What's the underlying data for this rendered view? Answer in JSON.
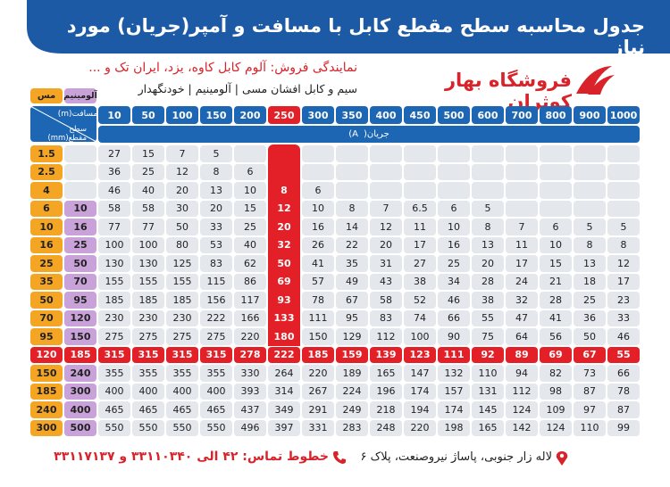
{
  "header": {
    "title": "جدول محاسبه سطح مقطع کابل با مسافت و آمپر(جریان) مورد نیاز"
  },
  "info": {
    "dealer": "نمایندگی فروش: آلوم کابل کاوه، یزد، ایران تک و ...",
    "products": "سیم و کابل افشان مسی | آلومینیم | خودنگهدار",
    "store_name": "فروشگاه بهار کوثران"
  },
  "table": {
    "copper_label": "مس",
    "aluminum_label": "آلومینیم",
    "distance_label": "مسافت(m)",
    "section_label": "سطح مقطع(mm)",
    "current_label": "جریان(A)",
    "distances": [
      10,
      50,
      100,
      150,
      200,
      250,
      300,
      350,
      400,
      450,
      500,
      600,
      700,
      800,
      900,
      1000
    ],
    "rows": [
      {
        "copper": 1.5,
        "aluminum": null,
        "values": [
          27,
          15,
          7,
          5,
          null,
          null,
          null,
          null,
          null,
          null,
          null,
          null,
          null,
          null,
          null,
          null
        ]
      },
      {
        "copper": 2.5,
        "aluminum": null,
        "values": [
          36,
          25,
          12,
          8,
          6,
          null,
          null,
          null,
          null,
          null,
          null,
          null,
          null,
          null,
          null,
          null
        ]
      },
      {
        "copper": 4,
        "aluminum": null,
        "values": [
          46,
          40,
          20,
          13,
          10,
          8,
          6,
          null,
          null,
          null,
          null,
          null,
          null,
          null,
          null,
          null
        ]
      },
      {
        "copper": 6,
        "aluminum": 10,
        "values": [
          58,
          58,
          30,
          20,
          15,
          12,
          10,
          8,
          7,
          6.5,
          6,
          5,
          null,
          null,
          null,
          null
        ]
      },
      {
        "copper": 10,
        "aluminum": 16,
        "values": [
          77,
          77,
          50,
          33,
          25,
          20,
          16,
          14,
          12,
          11,
          10,
          8,
          7,
          6,
          5,
          5
        ]
      },
      {
        "copper": 16,
        "aluminum": 25,
        "values": [
          100,
          100,
          80,
          53,
          40,
          32,
          26,
          22,
          20,
          17,
          16,
          13,
          11,
          10,
          8,
          8
        ]
      },
      {
        "copper": 25,
        "aluminum": 50,
        "values": [
          130,
          130,
          125,
          83,
          62,
          50,
          41,
          35,
          31,
          27,
          25,
          20,
          17,
          15,
          13,
          12
        ]
      },
      {
        "copper": 35,
        "aluminum": 70,
        "values": [
          155,
          155,
          155,
          115,
          86,
          69,
          57,
          49,
          43,
          38,
          34,
          28,
          24,
          21,
          18,
          17
        ]
      },
      {
        "copper": 50,
        "aluminum": 95,
        "values": [
          185,
          185,
          185,
          156,
          117,
          93,
          78,
          67,
          58,
          52,
          46,
          38,
          32,
          28,
          25,
          23
        ]
      },
      {
        "copper": 70,
        "aluminum": 120,
        "values": [
          230,
          230,
          230,
          222,
          166,
          133,
          111,
          95,
          83,
          74,
          66,
          55,
          47,
          41,
          36,
          33
        ]
      },
      {
        "copper": 95,
        "aluminum": 150,
        "values": [
          275,
          275,
          275,
          275,
          220,
          180,
          150,
          129,
          112,
          100,
          90,
          75,
          64,
          56,
          50,
          46
        ]
      },
      {
        "copper": 120,
        "aluminum": 185,
        "values": [
          315,
          315,
          315,
          315,
          278,
          222,
          185,
          159,
          139,
          123,
          111,
          92,
          89,
          69,
          67,
          55
        ]
      },
      {
        "copper": 150,
        "aluminum": 240,
        "values": [
          355,
          355,
          355,
          355,
          330,
          264,
          220,
          189,
          165,
          147,
          132,
          110,
          94,
          82,
          73,
          66
        ]
      },
      {
        "copper": 185,
        "aluminum": 300,
        "values": [
          400,
          400,
          400,
          400,
          393,
          314,
          267,
          224,
          196,
          174,
          157,
          131,
          112,
          98,
          87,
          78
        ]
      },
      {
        "copper": 240,
        "aluminum": 400,
        "values": [
          465,
          465,
          465,
          465,
          437,
          349,
          291,
          249,
          218,
          194,
          174,
          145,
          124,
          109,
          97,
          87
        ]
      },
      {
        "copper": 300,
        "aluminum": 500,
        "values": [
          550,
          550,
          550,
          550,
          496,
          397,
          331,
          283,
          248,
          220,
          198,
          165,
          142,
          124,
          110,
          99
        ]
      }
    ]
  },
  "footer": {
    "address": "لاله زار جنوبی، پاساژ نیروصنعت، پلاک ۶",
    "phone": "خطوط تماس: ۴۲ الی ۳۳۱۱۰۳۴۰ و ۳۳۱۱۷۱۳۷"
  }
}
